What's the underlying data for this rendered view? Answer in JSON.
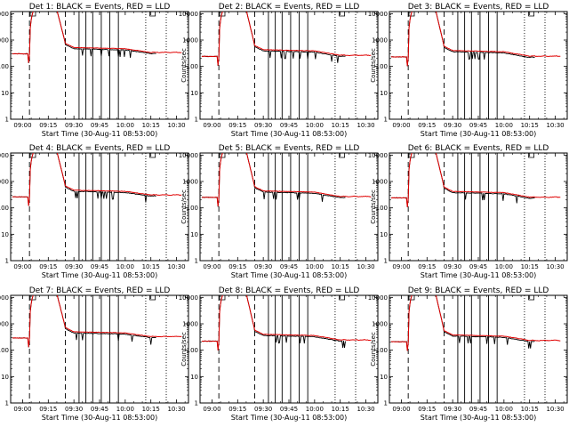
{
  "chart_data": {
    "type": "line",
    "grid_layout": "3x3",
    "common": {
      "ylabel": "Counts/sec",
      "xlabel": "Start Time (30-Aug-11 08:53:00)",
      "x_ticks": [
        "09:00",
        "09:15",
        "09:30",
        "09:45",
        "10:00",
        "10:15",
        "10:30"
      ],
      "x_tick_minutes": [
        0,
        15,
        30,
        45,
        60,
        75,
        90
      ],
      "xlim_minutes": [
        -7,
        97
      ],
      "y_scale": "log",
      "ylim": [
        1,
        12000
      ],
      "y_ticks": [
        "1",
        "10",
        "100",
        "1000",
        "10000"
      ],
      "y_tick_values": [
        1,
        10,
        100,
        1000,
        10000
      ],
      "series_names": [
        "Events",
        "LLD"
      ],
      "series_colors": {
        "Events": "#000000",
        "LLD": "#e00000"
      },
      "dashed_lines_minutes": [
        4,
        25
      ],
      "solid_lines_minutes": [
        33,
        37,
        41,
        46,
        51,
        56
      ],
      "dotted_lines_minutes": [
        72,
        84
      ],
      "attenuator_markers": [
        {
          "label": "A",
          "minute": 6
        },
        {
          "label": "B",
          "minute": 76
        }
      ]
    },
    "panels": [
      {
        "title": "Det 1: BLACK = Events, RED = LLD",
        "pre": 300,
        "plateau": 520,
        "end": 340
      },
      {
        "title": "Det 2: BLACK = Events, RED = LLD",
        "pre": 240,
        "plateau": 430,
        "end": 265
      },
      {
        "title": "Det 3: BLACK = Events, RED = LLD",
        "pre": 230,
        "plateau": 400,
        "end": 245
      },
      {
        "title": "Det 4: BLACK = Events, RED = LLD",
        "pre": 260,
        "plateau": 470,
        "end": 310
      },
      {
        "title": "Det 5: BLACK = Events, RED = LLD",
        "pre": 250,
        "plateau": 440,
        "end": 270
      },
      {
        "title": "Det 6: BLACK = Events, RED = LLD",
        "pre": 240,
        "plateau": 420,
        "end": 255
      },
      {
        "title": "Det 7: BLACK = Events, RED = LLD",
        "pre": 290,
        "plateau": 500,
        "end": 330
      },
      {
        "title": "Det 8: BLACK = Events, RED = LLD",
        "pre": 220,
        "plateau": 400,
        "end": 245
      },
      {
        "title": "Det 9: BLACK = Events, RED = LLD",
        "pre": 210,
        "plateau": 380,
        "end": 235
      }
    ]
  }
}
